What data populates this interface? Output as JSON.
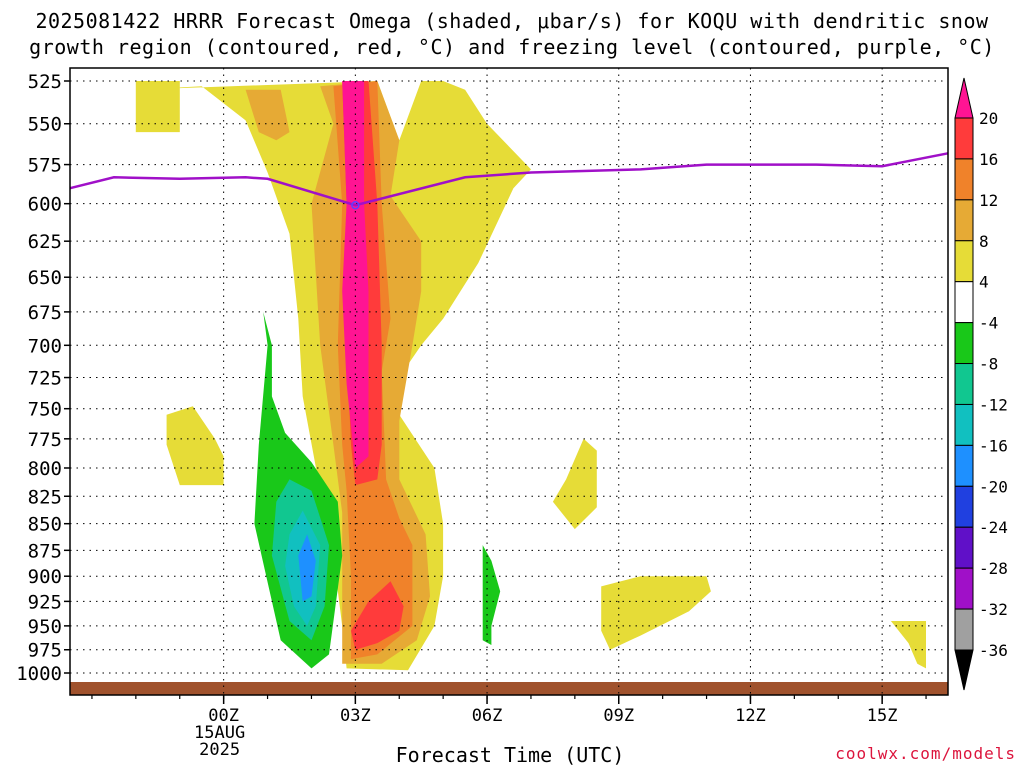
{
  "title": {
    "line1": "2025081422 HRRR Forecast Omega (shaded, μbar/s) for KOQU with dendritic snow",
    "line2": "growth region (contoured, red, °C) and freezing level (contoured, purple, °C)"
  },
  "credit": "coolwx.com/models",
  "chart_data": {
    "type": "heatmap",
    "xlabel": "Forecast Time (UTC)",
    "ylabel": "",
    "x_unit": "forecast hour after 00Z 15AUG 2025",
    "xlim": [
      -3.5,
      16.5
    ],
    "ylim": [
      1000,
      525
    ],
    "y_scale": "log",
    "y_ticks": [
      525,
      550,
      575,
      600,
      625,
      650,
      675,
      700,
      725,
      750,
      775,
      800,
      825,
      850,
      875,
      900,
      925,
      950,
      975,
      1000
    ],
    "x_ticks": [
      {
        "hour": 0,
        "label": "00Z",
        "sub1": "15AUG",
        "sub2": "2025"
      },
      {
        "hour": 3,
        "label": "03Z"
      },
      {
        "hour": 6,
        "label": "06Z"
      },
      {
        "hour": 9,
        "label": "09Z"
      },
      {
        "hour": 12,
        "label": "12Z"
      },
      {
        "hour": 15,
        "label": "15Z"
      }
    ],
    "grid": true,
    "colorbar": {
      "levels": [
        20,
        16,
        12,
        8,
        4,
        -4,
        -8,
        -12,
        -16,
        -20,
        -24,
        -28,
        -32,
        -36
      ],
      "colors": [
        "#ff1493",
        "#ff3b3b",
        "#f0822a",
        "#e6aa35",
        "#e6dc37",
        "#ffffff",
        "#19c819",
        "#11c790",
        "#11c0c0",
        "#1e90ff",
        "#2040e0",
        "#6010c8",
        "#a010c8",
        "#a0a0a0",
        "#000000"
      ]
    },
    "freezing_level": {
      "name": "freezing level",
      "color": "#a010c8",
      "x": [
        -3.5,
        -2.5,
        -1.0,
        0.5,
        1.0,
        3.0,
        5.5,
        7.0,
        9.5,
        11.0,
        13.5,
        15.0,
        16.5
      ],
      "y": [
        590,
        583,
        584,
        583,
        584,
        601,
        583,
        580,
        578,
        575,
        575,
        576,
        568
      ]
    },
    "omega_regions": [
      {
        "level": 4,
        "color": "#e6dc37",
        "points": [
          [
            -2.0,
            530
          ],
          [
            -0.5,
            528
          ],
          [
            0.5,
            548
          ],
          [
            1.0,
            580
          ],
          [
            1.5,
            620
          ],
          [
            1.7,
            680
          ],
          [
            1.8,
            740
          ],
          [
            2.2,
            820
          ],
          [
            2.5,
            880
          ],
          [
            2.7,
            950
          ],
          [
            2.8,
            995
          ],
          [
            4.2,
            997
          ],
          [
            4.8,
            950
          ],
          [
            5.0,
            900
          ],
          [
            5.0,
            850
          ],
          [
            4.8,
            800
          ],
          [
            4.0,
            755
          ],
          [
            3.8,
            735
          ],
          [
            4.5,
            700
          ],
          [
            5.0,
            680
          ],
          [
            5.8,
            640
          ],
          [
            6.6,
            590
          ],
          [
            7.0,
            578
          ],
          [
            6.0,
            550
          ],
          [
            5.5,
            530
          ],
          [
            5.0,
            525
          ],
          [
            4.5,
            525
          ],
          [
            4.0,
            560
          ],
          [
            3.5,
            525
          ]
        ]
      },
      {
        "level": 4,
        "color": "#e6dc37",
        "points": [
          [
            -2.0,
            525
          ],
          [
            -1.0,
            525
          ],
          [
            -1.0,
            555
          ],
          [
            -2.0,
            555
          ]
        ]
      },
      {
        "level": 4,
        "color": "#e6dc37",
        "points": [
          [
            -1.3,
            755
          ],
          [
            -0.7,
            748
          ],
          [
            -0.2,
            775
          ],
          [
            0,
            790
          ],
          [
            0,
            815
          ],
          [
            -1.0,
            815
          ],
          [
            -1.3,
            780
          ]
        ]
      },
      {
        "level": 4,
        "color": "#e6dc37",
        "points": [
          [
            7.8,
            810
          ],
          [
            8.2,
            775
          ],
          [
            8.5,
            785
          ],
          [
            8.5,
            835
          ],
          [
            8.0,
            855
          ],
          [
            7.5,
            830
          ]
        ]
      },
      {
        "level": 4,
        "color": "#e6dc37",
        "points": [
          [
            8.6,
            910
          ],
          [
            9.5,
            900
          ],
          [
            11.0,
            900
          ],
          [
            11.1,
            915
          ],
          [
            10.6,
            935
          ],
          [
            9.5,
            960
          ],
          [
            8.8,
            975
          ],
          [
            8.6,
            955
          ]
        ]
      },
      {
        "level": 4,
        "color": "#e6dc37",
        "points": [
          [
            15.2,
            945
          ],
          [
            16.0,
            945
          ],
          [
            16.0,
            995
          ],
          [
            15.8,
            990
          ],
          [
            15.6,
            968
          ]
        ]
      },
      {
        "level": 8,
        "color": "#e6aa35",
        "points": [
          [
            0.5,
            530
          ],
          [
            1.3,
            530
          ],
          [
            1.5,
            555
          ],
          [
            1.2,
            560
          ],
          [
            0.8,
            555
          ]
        ]
      },
      {
        "level": 8,
        "color": "#e6aa35",
        "points": [
          [
            2.2,
            528
          ],
          [
            2.5,
            550
          ],
          [
            2.0,
            600
          ],
          [
            2.2,
            700
          ],
          [
            2.5,
            780
          ],
          [
            2.7,
            840
          ],
          [
            2.7,
            920
          ],
          [
            2.7,
            990
          ],
          [
            3.6,
            990
          ],
          [
            4.4,
            965
          ],
          [
            4.7,
            920
          ],
          [
            4.6,
            860
          ],
          [
            4.0,
            810
          ],
          [
            4.0,
            760
          ],
          [
            4.3,
            700
          ],
          [
            4.5,
            660
          ],
          [
            4.5,
            625
          ],
          [
            3.8,
            595
          ],
          [
            4.0,
            560
          ],
          [
            3.5,
            525
          ]
        ]
      },
      {
        "level": 12,
        "color": "#f0822a",
        "points": [
          [
            2.5,
            528
          ],
          [
            2.7,
            600
          ],
          [
            2.6,
            700
          ],
          [
            2.7,
            780
          ],
          [
            2.8,
            820
          ],
          [
            2.9,
            900
          ],
          [
            2.9,
            985
          ],
          [
            3.5,
            980
          ],
          [
            4.3,
            950
          ],
          [
            4.3,
            870
          ],
          [
            4.0,
            845
          ],
          [
            3.7,
            810
          ],
          [
            3.6,
            720
          ],
          [
            3.8,
            680
          ],
          [
            3.6,
            600
          ],
          [
            3.5,
            525
          ]
        ]
      },
      {
        "level": 16,
        "color": "#ff3b3b",
        "points": [
          [
            2.7,
            525
          ],
          [
            2.8,
            600
          ],
          [
            2.8,
            700
          ],
          [
            2.9,
            780
          ],
          [
            3.0,
            815
          ],
          [
            3.5,
            810
          ],
          [
            3.6,
            780
          ],
          [
            3.6,
            700
          ],
          [
            3.5,
            600
          ],
          [
            3.3,
            525
          ]
        ]
      },
      {
        "level": 16,
        "color": "#ff3b3b",
        "points": [
          [
            2.9,
            955
          ],
          [
            3.3,
            925
          ],
          [
            3.8,
            905
          ],
          [
            4.1,
            930
          ],
          [
            4.0,
            955
          ],
          [
            3.5,
            968
          ],
          [
            3.0,
            975
          ]
        ]
      },
      {
        "level": 20,
        "color": "#ff1493",
        "points": [
          [
            2.7,
            525
          ],
          [
            2.8,
            600
          ],
          [
            2.7,
            660
          ],
          [
            2.8,
            730
          ],
          [
            3.0,
            800
          ],
          [
            3.3,
            790
          ],
          [
            3.3,
            720
          ],
          [
            3.3,
            660
          ],
          [
            3.2,
            600
          ],
          [
            3.2,
            525
          ]
        ]
      },
      {
        "level": -4,
        "color": "#19c819",
        "points": [
          [
            0.9,
            675
          ],
          [
            1.0,
            700
          ],
          [
            0.8,
            780
          ],
          [
            0.7,
            850
          ],
          [
            1.3,
            965
          ],
          [
            2.0,
            995
          ],
          [
            2.4,
            980
          ],
          [
            2.7,
            880
          ],
          [
            2.6,
            830
          ],
          [
            2.0,
            795
          ],
          [
            1.4,
            770
          ],
          [
            1.1,
            740
          ],
          [
            1.1,
            700
          ]
        ]
      },
      {
        "level": -4,
        "color": "#19c819",
        "points": [
          [
            5.9,
            870
          ],
          [
            6.1,
            885
          ],
          [
            6.3,
            915
          ],
          [
            6.1,
            950
          ],
          [
            6.1,
            970
          ],
          [
            5.9,
            965
          ],
          [
            5.9,
            905
          ]
        ]
      },
      {
        "level": -8,
        "color": "#11c790",
        "points": [
          [
            1.2,
            830
          ],
          [
            1.5,
            810
          ],
          [
            2.0,
            820
          ],
          [
            2.4,
            870
          ],
          [
            2.3,
            930
          ],
          [
            2.0,
            965
          ],
          [
            1.5,
            945
          ],
          [
            1.1,
            880
          ]
        ]
      },
      {
        "level": -12,
        "color": "#11c0c0",
        "points": [
          [
            1.5,
            860
          ],
          [
            1.8,
            838
          ],
          [
            2.2,
            870
          ],
          [
            2.1,
            930
          ],
          [
            1.9,
            950
          ],
          [
            1.6,
            930
          ],
          [
            1.4,
            890
          ]
        ]
      },
      {
        "level": -16,
        "color": "#1e90ff",
        "points": [
          [
            1.7,
            880
          ],
          [
            1.9,
            860
          ],
          [
            2.1,
            885
          ],
          [
            2.0,
            920
          ],
          [
            1.8,
            925
          ]
        ]
      }
    ]
  }
}
